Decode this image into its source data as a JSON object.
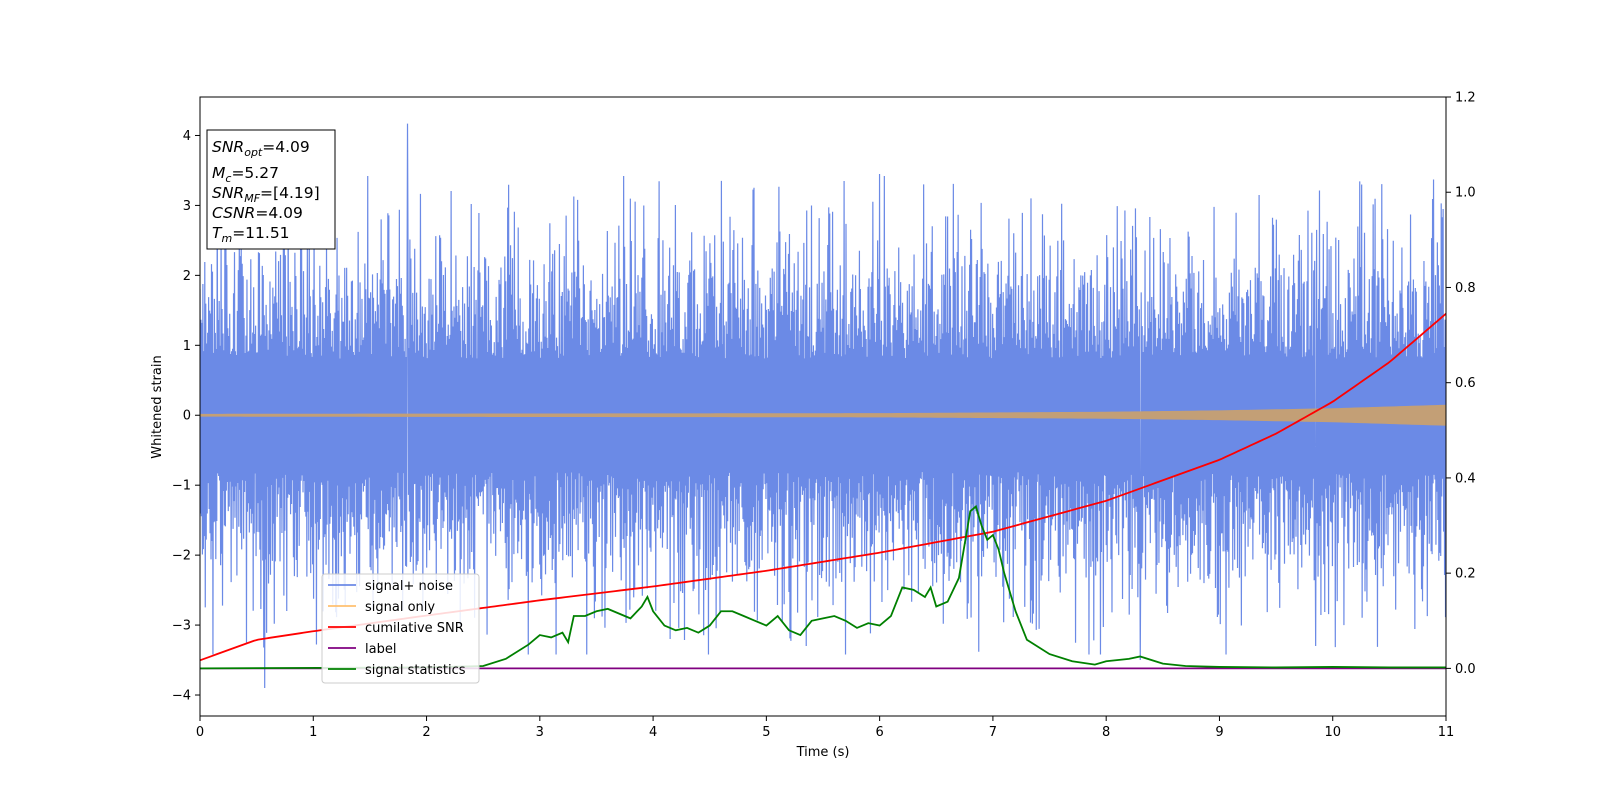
{
  "chart_data": {
    "type": "line",
    "xlabel": "Time (s)",
    "ylabel": "Whitened strain",
    "xlim": [
      0,
      11
    ],
    "ylim_left": [
      -4.3,
      4.55
    ],
    "ylim_right": [
      -0.1,
      1.2
    ],
    "x_ticks": [
      0,
      1,
      2,
      3,
      4,
      5,
      6,
      7,
      8,
      9,
      10,
      11
    ],
    "y_left_ticks": [
      -4,
      -3,
      -2,
      -1,
      0,
      1,
      2,
      3,
      4
    ],
    "y_left_tick_labels": [
      "−4",
      "−3",
      "−2",
      "−1",
      "0",
      "1",
      "2",
      "3",
      "4"
    ],
    "y_right_ticks": [
      0.0,
      0.2,
      0.4,
      0.6,
      0.8,
      1.0,
      1.2
    ],
    "y_right_tick_labels": [
      "0.0",
      "0.2",
      "0.4",
      "0.6",
      "0.8",
      "1.0",
      "1.2"
    ],
    "grid": false,
    "legend_position": "lower-left",
    "legend": [
      {
        "label": "signal+ noise",
        "color": "#6b8ae6"
      },
      {
        "label": "signal only",
        "color": "#ffc070"
      },
      {
        "label": "cumilative SNR",
        "color": "#ff0000"
      },
      {
        "label": "label",
        "color": "#800080"
      },
      {
        "label": "signal statistics",
        "color": "#008000"
      }
    ],
    "annotation": [
      {
        "base": "SNR",
        "sub": "opt",
        "value": "=4.09"
      },
      {
        "base": "M",
        "sub": "c",
        "value": "=5.27"
      },
      {
        "base": "SNR",
        "sub": "MF",
        "value": "=[4.19]"
      },
      {
        "base": "CSNR",
        "sub": "",
        "value": "=4.09"
      },
      {
        "base": "T",
        "sub": "m",
        "value": "=11.51"
      }
    ],
    "series": [
      {
        "name": "signal+ noise",
        "axis": "left",
        "color": "#6b8ae6",
        "kind": "noise",
        "typical_range": [
          -1.8,
          1.8
        ],
        "max": 4.17,
        "min": -3.9,
        "spikes": [
          [
            0.57,
            -3.9
          ],
          [
            1.83,
            4.17
          ],
          [
            6.0,
            3.45
          ],
          [
            4.15,
            -3.2
          ],
          [
            9.85,
            -3.3
          ],
          [
            10.1,
            -3.0
          ],
          [
            1.6,
            2.8
          ],
          [
            5.35,
            -3.3
          ],
          [
            8.3,
            -3.5
          ]
        ]
      },
      {
        "name": "signal only",
        "axis": "left",
        "color": "#ffc070",
        "kind": "chirp",
        "envelope": [
          [
            0,
            0.02
          ],
          [
            6,
            0.03
          ],
          [
            8,
            0.05
          ],
          [
            9,
            0.07
          ],
          [
            10,
            0.1
          ],
          [
            11,
            0.15
          ]
        ]
      },
      {
        "name": "cumilative SNR",
        "axis": "right",
        "color": "#ff0000",
        "x": [
          0,
          0.5,
          1,
          2,
          3,
          4,
          5,
          6,
          7,
          8,
          9,
          9.5,
          10,
          10.5,
          11
        ],
        "y": [
          0.017,
          0.06,
          0.078,
          0.111,
          0.143,
          0.172,
          0.205,
          0.243,
          0.287,
          0.352,
          0.438,
          0.493,
          0.56,
          0.643,
          0.745
        ]
      },
      {
        "name": "label",
        "axis": "right",
        "color": "#800080",
        "x": [
          0,
          11
        ],
        "y": [
          0.0,
          0.0
        ]
      },
      {
        "name": "signal statistics",
        "axis": "right",
        "color": "#008000",
        "x": [
          0,
          2.0,
          2.5,
          2.7,
          2.9,
          3.0,
          3.1,
          3.2,
          3.25,
          3.3,
          3.4,
          3.5,
          3.6,
          3.7,
          3.8,
          3.9,
          3.95,
          4.0,
          4.1,
          4.2,
          4.3,
          4.4,
          4.5,
          4.6,
          4.7,
          4.8,
          4.9,
          5.0,
          5.1,
          5.2,
          5.3,
          5.4,
          5.5,
          5.6,
          5.7,
          5.8,
          5.9,
          6.0,
          6.1,
          6.2,
          6.3,
          6.4,
          6.45,
          6.5,
          6.6,
          6.7,
          6.8,
          6.85,
          6.9,
          6.95,
          7.0,
          7.05,
          7.1,
          7.2,
          7.3,
          7.5,
          7.7,
          7.9,
          8.0,
          8.2,
          8.3,
          8.5,
          8.7,
          9.0,
          9.5,
          10.0,
          10.5,
          11.0
        ],
        "y": [
          0.0,
          0.002,
          0.005,
          0.02,
          0.05,
          0.07,
          0.065,
          0.075,
          0.055,
          0.11,
          0.11,
          0.12,
          0.125,
          0.115,
          0.105,
          0.13,
          0.15,
          0.12,
          0.09,
          0.08,
          0.085,
          0.075,
          0.09,
          0.12,
          0.12,
          0.11,
          0.1,
          0.09,
          0.11,
          0.08,
          0.07,
          0.1,
          0.105,
          0.11,
          0.1,
          0.085,
          0.095,
          0.09,
          0.11,
          0.17,
          0.165,
          0.15,
          0.17,
          0.13,
          0.14,
          0.19,
          0.33,
          0.34,
          0.3,
          0.27,
          0.28,
          0.25,
          0.2,
          0.12,
          0.06,
          0.03,
          0.015,
          0.008,
          0.015,
          0.02,
          0.025,
          0.01,
          0.005,
          0.003,
          0.002,
          0.003,
          0.002,
          0.002
        ]
      }
    ]
  }
}
